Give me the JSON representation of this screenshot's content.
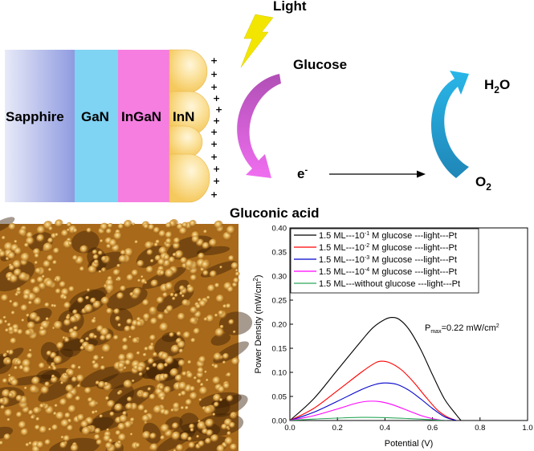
{
  "schematic": {
    "layers": [
      {
        "label": "Sapphire",
        "color_from": "#e8eaf8",
        "color_to": "#8f9be0"
      },
      {
        "label": "GaN",
        "color": "#7fd3f3"
      },
      {
        "label": "InGaN",
        "color": "#f57ee0"
      },
      {
        "label": "InN",
        "color": "#f5c95e"
      }
    ],
    "light_label": "Light",
    "glucose_label": "Glucose",
    "gluconic_label": "Gluconic acid",
    "electron_label": "e",
    "electron_sup": "-",
    "h2o_label": "H",
    "h2o_sub": "2",
    "h2o_tail": "O",
    "o2_label": "O",
    "o2_sub": "2",
    "plus_sign": "+",
    "colors": {
      "lightning": "#f2e600",
      "glucose_arrow_top": "#b04fb5",
      "glucose_arrow_bottom": "#f06ef0",
      "water_arrow_top": "#29b6e8",
      "water_arrow_bottom": "#1f86b7"
    }
  },
  "afm_image": {
    "colors": {
      "dark": "#3a1d04",
      "mid": "#a86a1a",
      "bright": "#f4d27e"
    }
  },
  "chart_data": {
    "type": "line",
    "xlabel": "Potential (V)",
    "ylabel": "Power Density  (mW/cm",
    "ylabel_sup": "2",
    "ylabel_tail": ")",
    "xlim": [
      0.0,
      1.0
    ],
    "ylim": [
      0.0,
      0.4
    ],
    "x_ticks": [
      "0.0",
      "0.2",
      "0.4",
      "0.6",
      "0.8",
      "1.0"
    ],
    "y_ticks": [
      "0.00",
      "0.05",
      "0.10",
      "0.15",
      "0.20",
      "0.25",
      "0.30",
      "0.35",
      "0.40"
    ],
    "annotation": {
      "p": "P",
      "sub": "max",
      "text": "=0.22 mW/cm",
      "sup": "2"
    },
    "legend_position": "top",
    "series": [
      {
        "name_pre": "1.5 ML---10",
        "name_sup": "-1",
        "name_post": "  M glucose ---light---Pt",
        "color": "#000000",
        "x": [
          0.0,
          0.1,
          0.2,
          0.3,
          0.35,
          0.4,
          0.43,
          0.46,
          0.5,
          0.55,
          0.6,
          0.65,
          0.7,
          0.72
        ],
        "y": [
          0.0,
          0.045,
          0.105,
          0.165,
          0.193,
          0.21,
          0.214,
          0.21,
          0.19,
          0.148,
          0.095,
          0.045,
          0.012,
          0.0
        ]
      },
      {
        "name_pre": "1.5 ML---10",
        "name_sup": "-2",
        "name_post": "  M glucose ---light---Pt",
        "color": "#ff0000",
        "x": [
          0.0,
          0.1,
          0.2,
          0.3,
          0.35,
          0.38,
          0.42,
          0.47,
          0.52,
          0.57,
          0.62,
          0.66,
          0.7
        ],
        "y": [
          0.0,
          0.025,
          0.062,
          0.1,
          0.117,
          0.123,
          0.12,
          0.105,
          0.08,
          0.05,
          0.022,
          0.008,
          0.0
        ]
      },
      {
        "name_pre": "1.5 ML---10",
        "name_sup": "-3",
        "name_post": "  M glucose ---light---Pt",
        "color": "#0000cc",
        "x": [
          0.0,
          0.1,
          0.2,
          0.3,
          0.36,
          0.4,
          0.45,
          0.5,
          0.55,
          0.6,
          0.65,
          0.7
        ],
        "y": [
          0.0,
          0.017,
          0.04,
          0.064,
          0.075,
          0.078,
          0.075,
          0.063,
          0.045,
          0.025,
          0.008,
          0.0
        ]
      },
      {
        "name_pre": "1.5 ML---10",
        "name_sup": "-4",
        "name_post": "  M glucose ---light---Pt",
        "color": "#ff00ff",
        "x": [
          0.0,
          0.1,
          0.2,
          0.28,
          0.33,
          0.38,
          0.43,
          0.5,
          0.56,
          0.62,
          0.66
        ],
        "y": [
          0.0,
          0.01,
          0.024,
          0.036,
          0.04,
          0.039,
          0.033,
          0.02,
          0.009,
          0.002,
          0.0
        ]
      },
      {
        "name_pre": "1.5 ML---without glucose ---light---Pt",
        "name_sup": "",
        "name_post": "",
        "color": "#2ca85a",
        "x": [
          0.0,
          0.1,
          0.2,
          0.3,
          0.4,
          0.5,
          0.6,
          0.66
        ],
        "y": [
          0.0,
          0.003,
          0.005,
          0.0065,
          0.006,
          0.004,
          0.0015,
          0.0
        ]
      }
    ]
  }
}
